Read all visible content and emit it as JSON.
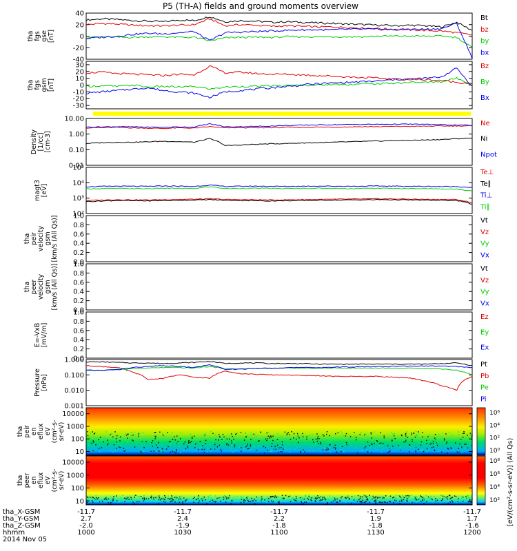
{
  "title": "P5 (TH-A) fields and ground moments overview",
  "colors": {
    "black": "#000000",
    "red": "#e00000",
    "green": "#00cc00",
    "blue": "#0000ee",
    "yellow": "#ffff00"
  },
  "chart_data": [
    {
      "id": "p1",
      "type": "line",
      "ylabel_lines": [
        "tha",
        "fgs",
        "gse",
        "[nT]"
      ],
      "ylim": [
        -40,
        40
      ],
      "ticks": [
        40,
        20,
        0,
        -20,
        -40
      ],
      "series": [
        {
          "name": "Bt",
          "color": "black",
          "values": [
            28,
            30,
            29,
            27,
            26,
            25,
            28,
            27,
            34,
            25,
            27,
            26,
            24,
            25,
            24,
            23,
            22,
            21,
            20,
            19,
            18,
            19,
            18,
            16,
            24,
            10
          ]
        },
        {
          "name": "bz",
          "color": "red",
          "values": [
            20,
            22,
            21,
            19,
            18,
            18,
            19,
            20,
            30,
            18,
            20,
            19,
            17,
            18,
            17,
            16,
            16,
            15,
            14,
            13,
            12,
            11,
            10,
            9,
            6,
            2
          ]
        },
        {
          "name": "by",
          "color": "green",
          "values": [
            -2,
            -1,
            -2,
            -2,
            -1,
            -1,
            -2,
            -2,
            -8,
            -3,
            -2,
            -2,
            -2,
            -1,
            -1,
            -1,
            -1,
            -1,
            -1,
            0,
            0,
            0,
            0,
            0,
            -2,
            -20
          ]
        },
        {
          "name": "bx",
          "color": "blue",
          "values": [
            -4,
            -2,
            0,
            3,
            5,
            4,
            6,
            8,
            -8,
            6,
            7,
            8,
            9,
            10,
            11,
            11,
            11,
            12,
            12,
            12,
            11,
            12,
            12,
            13,
            22,
            -38
          ]
        }
      ]
    },
    {
      "id": "p2",
      "type": "line",
      "ylabel_lines": [
        "tha",
        "fgs",
        "gsm",
        "[nT]"
      ],
      "ylim": [
        -35,
        35
      ],
      "ticks": [
        30,
        20,
        10,
        0,
        -10,
        -20,
        -30
      ],
      "series": [
        {
          "name": "Bz",
          "color": "red",
          "values": [
            18,
            19,
            17,
            16,
            15,
            14,
            16,
            15,
            28,
            18,
            19,
            17,
            16,
            16,
            15,
            14,
            13,
            12,
            11,
            10,
            9,
            8,
            8,
            7,
            4,
            2
          ]
        },
        {
          "name": "By",
          "color": "green",
          "values": [
            -2,
            -1,
            -2,
            0,
            -3,
            -2,
            -3,
            -2,
            -6,
            -3,
            -2,
            -2,
            -1,
            -1,
            0,
            0,
            1,
            1,
            2,
            2,
            3,
            4,
            4,
            5,
            10,
            2
          ]
        },
        {
          "name": "Bx",
          "color": "blue",
          "values": [
            -12,
            -10,
            -8,
            -6,
            -4,
            -8,
            -10,
            -12,
            -18,
            -10,
            -8,
            -6,
            -4,
            -2,
            0,
            2,
            3,
            4,
            5,
            6,
            8,
            9,
            10,
            12,
            25,
            -2
          ]
        }
      ]
    },
    {
      "id": "p3",
      "type": "line",
      "ylabel_lines": [
        "Density",
        "[1/cc]",
        "[cm-3]"
      ],
      "log": true,
      "ylim": [
        0.01,
        10
      ],
      "ticks": [
        10,
        1,
        0.1,
        0.01
      ],
      "tick_labels": [
        "10.00",
        "1.00",
        "0.10",
        "0.01"
      ],
      "series": [
        {
          "name": "Ne",
          "color": "red",
          "values": [
            2.5,
            2.6,
            2.7,
            2.5,
            2.4,
            2.3,
            2.5,
            2.4,
            3.0,
            2.5,
            2.6,
            2.5,
            2.6,
            2.7,
            2.7,
            2.8,
            2.8,
            2.9,
            3.0,
            3.0,
            3.1,
            3.1,
            3.2,
            3.3,
            3.3,
            3.4
          ]
        },
        {
          "name": "Ni",
          "color": "black",
          "values": [
            0.25,
            0.28,
            0.3,
            0.3,
            0.32,
            0.35,
            0.33,
            0.3,
            0.5,
            0.18,
            0.2,
            0.22,
            0.24,
            0.25,
            0.27,
            0.28,
            0.3,
            0.32,
            0.34,
            0.36,
            0.38,
            0.4,
            0.42,
            0.45,
            0.5,
            0.55
          ]
        },
        {
          "name": "Npot",
          "color": "blue",
          "values": [
            2.8,
            2.9,
            3.0,
            2.9,
            2.8,
            2.7,
            2.9,
            2.8,
            4.5,
            2.9,
            3.0,
            3.1,
            3.3,
            3.5,
            3.7,
            3.9,
            4.0,
            4.1,
            4.2,
            4.2,
            4.3,
            4.3,
            4.2,
            4.0,
            3.8,
            3.6
          ]
        }
      ]
    },
    {
      "id": "p4",
      "type": "line",
      "ylabel_lines": [
        "magt3",
        "[eV]"
      ],
      "log": true,
      "ylim": [
        100,
        100000
      ],
      "ticks": [
        100000,
        10000,
        1000,
        100
      ],
      "tick_labels": [
        "10⁵",
        "10⁴",
        "10³",
        "10²"
      ],
      "series": [
        {
          "name": "Te⊥",
          "color": "red",
          "values": [
            700,
            750,
            800,
            780,
            760,
            800,
            820,
            850,
            900,
            820,
            800,
            780,
            760,
            780,
            800,
            820,
            840,
            860,
            880,
            900,
            880,
            860,
            840,
            820,
            800,
            500
          ]
        },
        {
          "name": "Te∥",
          "color": "black",
          "values": [
            600,
            650,
            700,
            680,
            660,
            700,
            720,
            750,
            800,
            720,
            700,
            680,
            660,
            680,
            700,
            720,
            740,
            760,
            780,
            800,
            780,
            760,
            740,
            720,
            700,
            400
          ]
        },
        {
          "name": "Ti⊥",
          "color": "blue",
          "values": [
            5500,
            5800,
            6000,
            5900,
            5800,
            6200,
            6000,
            5800,
            7000,
            5800,
            5900,
            6000,
            5900,
            5800,
            6000,
            6100,
            6000,
            5900,
            6000,
            6100,
            6000,
            5900,
            5800,
            5700,
            5600,
            5000
          ]
        },
        {
          "name": "Ti∥",
          "color": "green",
          "values": [
            4000,
            4200,
            4300,
            4200,
            4100,
            4400,
            4300,
            4200,
            5500,
            4200,
            4300,
            4400,
            4300,
            4200,
            4300,
            4400,
            4300,
            4200,
            4300,
            4400,
            4300,
            4200,
            4100,
            4000,
            3800,
            3000
          ]
        }
      ]
    },
    {
      "id": "p5",
      "type": "line",
      "ylabel_lines": [
        "tha",
        "peir",
        "velocity",
        "gsm",
        "[km/s (All Qs)]"
      ],
      "ylim": [
        0,
        1
      ],
      "ticks": [
        1,
        0.8,
        0.6,
        0.4,
        0.2,
        0
      ],
      "tick_labels": [
        "1.0",
        "0.8",
        "0.6",
        "0.4",
        "0.2",
        "0.0"
      ],
      "series": [
        {
          "name": "Vt",
          "color": "black",
          "values": []
        },
        {
          "name": "Vz",
          "color": "red",
          "values": []
        },
        {
          "name": "Vy",
          "color": "green",
          "values": []
        },
        {
          "name": "Vx",
          "color": "blue",
          "values": []
        }
      ]
    },
    {
      "id": "p6",
      "type": "line",
      "ylabel_lines": [
        "tha",
        "peer",
        "velocity",
        "gsm",
        "[km/s (All Qs)]"
      ],
      "ylim": [
        0,
        1
      ],
      "ticks": [
        1,
        0.8,
        0.6,
        0.4,
        0.2,
        0
      ],
      "tick_labels": [
        "1.0",
        "0.8",
        "0.6",
        "0.4",
        "0.2",
        "0.0"
      ],
      "series": [
        {
          "name": "Vt",
          "color": "black",
          "values": []
        },
        {
          "name": "Vz",
          "color": "red",
          "values": []
        },
        {
          "name": "Vy",
          "color": "green",
          "values": []
        },
        {
          "name": "Vx",
          "color": "blue",
          "values": []
        }
      ]
    },
    {
      "id": "p7",
      "type": "line",
      "ylabel_lines": [
        "E=-VxB",
        "[mV/m]"
      ],
      "ylim": [
        0,
        1
      ],
      "ticks": [
        1,
        0.8,
        0.6,
        0.4,
        0.2,
        0
      ],
      "tick_labels": [
        "1.0",
        "0.8",
        "0.6",
        "0.4",
        "0.2",
        "0.0"
      ],
      "series": [
        {
          "name": "Ez",
          "color": "red",
          "values": []
        },
        {
          "name": "Ey",
          "color": "green",
          "values": []
        },
        {
          "name": "Ex",
          "color": "blue",
          "values": []
        }
      ]
    },
    {
      "id": "p8",
      "type": "line",
      "ylabel_lines": [
        "Pressure",
        "[nPa]"
      ],
      "log": true,
      "ylim": [
        0.001,
        1
      ],
      "ticks": [
        1,
        0.1,
        0.01,
        0.001
      ],
      "tick_labels": [
        "1.000",
        "0.100",
        "0.010",
        "0.001"
      ],
      "series": [
        {
          "name": "Pt",
          "color": "black",
          "values": [
            0.7,
            0.7,
            0.65,
            0.6,
            0.6,
            0.55,
            0.6,
            0.65,
            0.75,
            0.55,
            0.6,
            0.6,
            0.55,
            0.55,
            0.55,
            0.5,
            0.5,
            0.5,
            0.5,
            0.5,
            0.5,
            0.5,
            0.5,
            0.55,
            0.6,
            0.4
          ]
        },
        {
          "name": "Pb",
          "color": "red",
          "values": [
            0.4,
            0.35,
            0.3,
            0.15,
            0.05,
            0.06,
            0.1,
            0.07,
            0.06,
            0.18,
            0.12,
            0.11,
            0.1,
            0.1,
            0.09,
            0.09,
            0.08,
            0.08,
            0.08,
            0.08,
            0.07,
            0.06,
            0.04,
            0.02,
            0.01,
            0.08
          ]
        },
        {
          "name": "Pe",
          "color": "green",
          "values": [
            0.2,
            0.2,
            0.22,
            0.25,
            0.28,
            0.3,
            0.3,
            0.28,
            0.35,
            0.25,
            0.25,
            0.26,
            0.27,
            0.28,
            0.27,
            0.27,
            0.28,
            0.28,
            0.28,
            0.28,
            0.27,
            0.27,
            0.26,
            0.25,
            0.2,
            0.1
          ]
        },
        {
          "name": "Pi",
          "color": "blue",
          "values": [
            0.2,
            0.2,
            0.22,
            0.3,
            0.35,
            0.4,
            0.35,
            0.3,
            0.45,
            0.22,
            0.24,
            0.26,
            0.28,
            0.3,
            0.3,
            0.3,
            0.32,
            0.33,
            0.34,
            0.35,
            0.36,
            0.37,
            0.38,
            0.37,
            0.35,
            0.3
          ]
        }
      ]
    },
    {
      "id": "p9",
      "type": "heatmap",
      "ylabel_lines": [
        "tha",
        "peir",
        "en",
        "eflux",
        "eV",
        "(cm²-s-",
        "sr-eV)"
      ],
      "log": true,
      "ylim": [
        5,
        30000
      ],
      "ticks": [
        10000,
        1000,
        100,
        10
      ],
      "tick_labels": [
        "10000",
        "1000",
        "100",
        "10"
      ],
      "colorbar": {
        "label": "[eV/(cm²-s-sr-eV)] (All Qs)",
        "tick_labels": [
          "10⁶",
          "10⁴",
          "10²",
          "10⁰"
        ]
      }
    },
    {
      "id": "p10",
      "type": "heatmap",
      "ylabel_lines": [
        "tha",
        "peer",
        "en",
        "eflux",
        "eV",
        "(cm²-s-",
        "sr-eV)"
      ],
      "log": true,
      "ylim": [
        5,
        30000
      ],
      "ticks": [
        10000,
        1000,
        100,
        10
      ],
      "tick_labels": [
        "10000",
        "1000",
        "100",
        "10"
      ],
      "colorbar": {
        "label": "[eV/(cm²-s-sr-eV)] (All Qs)",
        "tick_labels": [
          "10⁸",
          "10⁶",
          "10⁴",
          "10²"
        ]
      }
    }
  ],
  "xaxis": {
    "row_labels": [
      "tha_X-GSM",
      "tha_Y-GSM",
      "tha_Z-GSM",
      "hhmm",
      "2014 Nov 05"
    ],
    "columns": [
      {
        "x": "-11.7",
        "y": "2.7",
        "z": "-2.0",
        "hhmm": "1000"
      },
      {
        "x": "-11.7",
        "y": "2.4",
        "z": "-1.9",
        "hhmm": "1030"
      },
      {
        "x": "-11.7",
        "y": "2.2",
        "z": "-1.8",
        "hhmm": "1100"
      },
      {
        "x": "-11.7",
        "y": "1.9",
        "z": "-1.8",
        "hhmm": "1130"
      },
      {
        "x": "-11.7",
        "y": "1.7",
        "z": "-1.6",
        "hhmm": "1200"
      }
    ]
  }
}
